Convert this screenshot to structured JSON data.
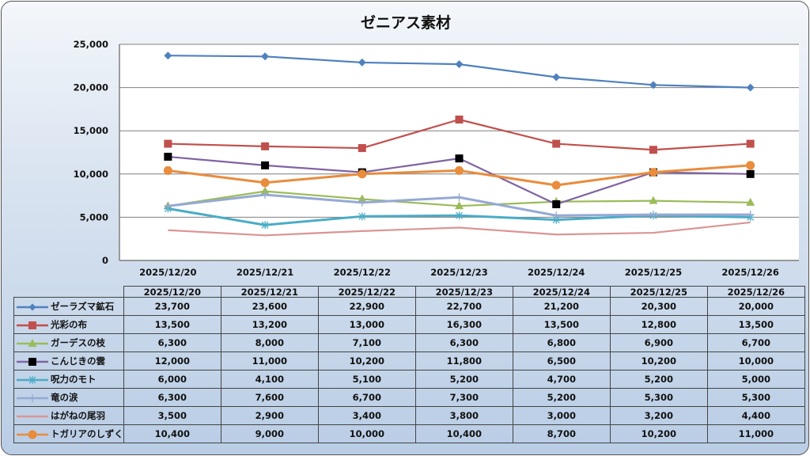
{
  "chart_data": {
    "type": "line",
    "title": "ゼニアス素材",
    "xlabel": "",
    "ylabel": "",
    "ylim": [
      0,
      25000
    ],
    "yticks": [
      "0",
      "5,000",
      "10,000",
      "15,000",
      "20,000",
      "25,000"
    ],
    "ytick_values": [
      0,
      5000,
      10000,
      15000,
      20000,
      25000
    ],
    "grid": true,
    "legend": "data-table",
    "categories": [
      "2025/12/20",
      "2025/12/21",
      "2025/12/22",
      "2025/12/23",
      "2025/12/24",
      "2025/12/25",
      "2025/12/26"
    ],
    "series": [
      {
        "name": "ゼーラズマ鉱石",
        "color": "#4f81bd",
        "marker": "diamond",
        "values": [
          23700,
          23600,
          22900,
          22700,
          21200,
          20300,
          20000
        ],
        "labels": [
          "23,700",
          "23,600",
          "22,900",
          "22,700",
          "21,200",
          "20,300",
          "20,000"
        ]
      },
      {
        "name": "光彩の布",
        "color": "#c0504d",
        "marker": "square",
        "values": [
          13500,
          13200,
          13000,
          16300,
          13500,
          12800,
          13500
        ],
        "labels": [
          "13,500",
          "13,200",
          "13,000",
          "16,300",
          "13,500",
          "12,800",
          "13,500"
        ]
      },
      {
        "name": "ガーデスの枝",
        "color": "#9bbb59",
        "marker": "triangle",
        "values": [
          6300,
          8000,
          7100,
          6300,
          6800,
          6900,
          6700
        ],
        "labels": [
          "6,300",
          "8,000",
          "7,100",
          "6,300",
          "6,800",
          "6,900",
          "6,700"
        ]
      },
      {
        "name": "こんじきの雲",
        "color": "#8064a2",
        "marker": "black-square",
        "values": [
          12000,
          11000,
          10200,
          11800,
          6500,
          10200,
          10000
        ],
        "labels": [
          "12,000",
          "11,000",
          "10,200",
          "11,800",
          "6,500",
          "10,200",
          "10,000"
        ]
      },
      {
        "name": "呪力のモト",
        "color": "#4bacc6",
        "marker": "asterisk",
        "values": [
          6000,
          4100,
          5100,
          5200,
          4700,
          5200,
          5000
        ],
        "labels": [
          "6,000",
          "4,100",
          "5,100",
          "5,200",
          "4,700",
          "5,200",
          "5,000"
        ]
      },
      {
        "name": "竜の涙",
        "color": "#95a9d4",
        "marker": "plus",
        "values": [
          6300,
          7600,
          6700,
          7300,
          5200,
          5300,
          5300
        ],
        "labels": [
          "6,300",
          "7,600",
          "6,700",
          "7,300",
          "5,200",
          "5,300",
          "5,300"
        ]
      },
      {
        "name": "はがねの尾羽",
        "color": "#d99594",
        "marker": "none",
        "values": [
          3500,
          2900,
          3400,
          3800,
          3000,
          3200,
          4400
        ],
        "labels": [
          "3,500",
          "2,900",
          "3,400",
          "3,800",
          "3,000",
          "3,200",
          "4,400"
        ]
      },
      {
        "name": "トガリアのしずく",
        "color": "#e98c3c",
        "marker": "circle",
        "values": [
          10400,
          9000,
          10000,
          10400,
          8700,
          10200,
          11000
        ],
        "labels": [
          "10,400",
          "9,000",
          "10,000",
          "10,400",
          "8,700",
          "10,200",
          "11,000"
        ]
      }
    ]
  }
}
